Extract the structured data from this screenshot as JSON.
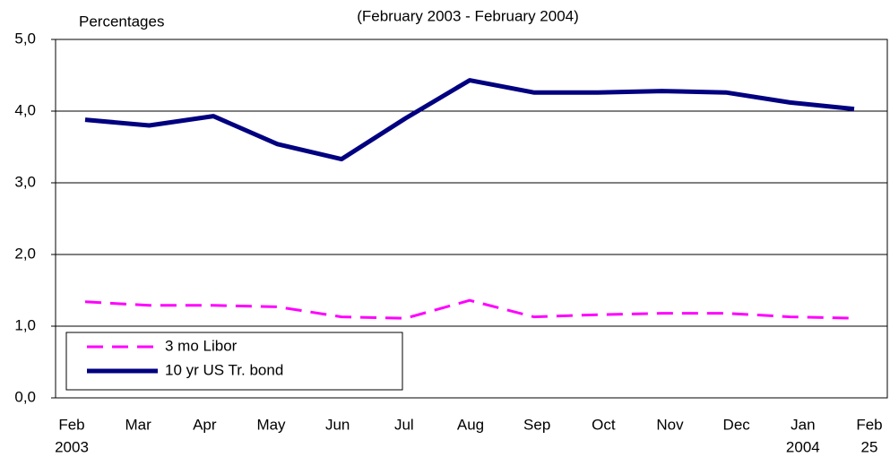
{
  "chart_data": {
    "type": "line",
    "subtitle": "(February 2003 - February 2004)",
    "ylabel": "Percentages",
    "categories": [
      "Feb",
      "Mar",
      "Apr",
      "May",
      "Jun",
      "Jul",
      "Aug",
      "Sep",
      "Oct",
      "Nov",
      "Dec",
      "Jan",
      "Feb"
    ],
    "category_sublabels": [
      "2003",
      null,
      null,
      null,
      null,
      null,
      null,
      null,
      null,
      null,
      null,
      "2004",
      "25"
    ],
    "series": [
      {
        "name": "3 mo Libor",
        "color": "#ff00ff",
        "dashed": true,
        "values": [
          1.34,
          1.29,
          1.29,
          1.27,
          1.13,
          1.11,
          1.36,
          1.13,
          1.16,
          1.18,
          1.18,
          1.13,
          1.11
        ]
      },
      {
        "name": "10 yr US Tr. bond",
        "color": "#000080",
        "dashed": false,
        "values": [
          3.88,
          3.8,
          3.93,
          3.54,
          3.33,
          3.9,
          4.43,
          4.26,
          4.26,
          4.28,
          4.26,
          4.12,
          4.03
        ]
      }
    ],
    "ylim": [
      0,
      5
    ],
    "yticks": [
      {
        "value": 0,
        "label": "0,0"
      },
      {
        "value": 1,
        "label": "1,0"
      },
      {
        "value": 2,
        "label": "2,0"
      },
      {
        "value": 3,
        "label": "3,0"
      },
      {
        "value": 4,
        "label": "4,0"
      },
      {
        "value": 5,
        "label": "5,0"
      }
    ],
    "grid": true,
    "legend": "bottom-left"
  }
}
